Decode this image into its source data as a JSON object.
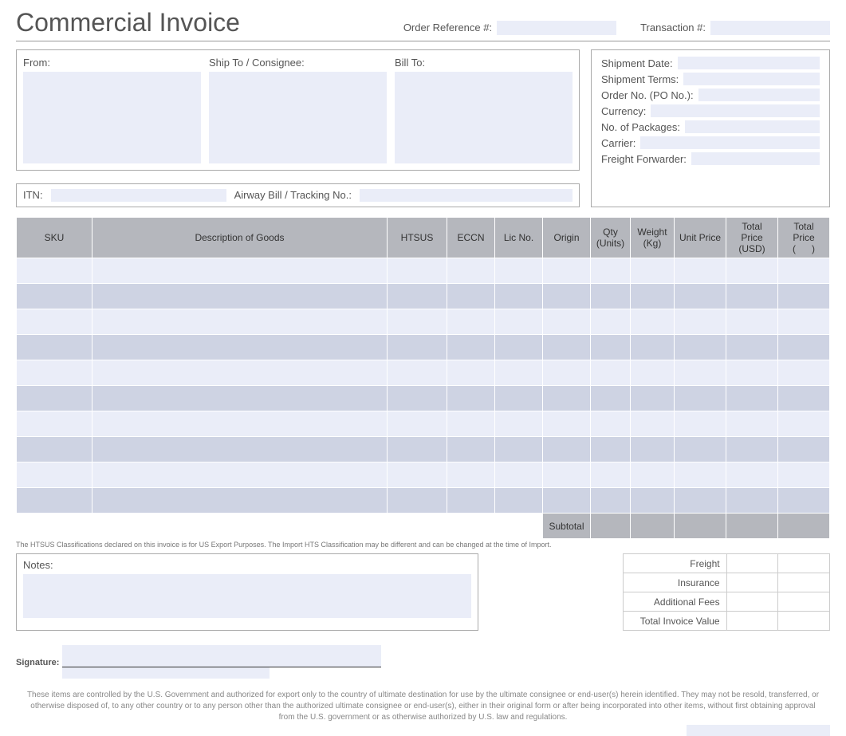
{
  "title": "Commercial Invoice",
  "header_refs": {
    "order_ref_label": "Order Reference #:",
    "order_ref_value": "",
    "transaction_label": "Transaction #:",
    "transaction_value": ""
  },
  "addresses": {
    "from_label": "From:",
    "from_value": "",
    "shipto_label": "Ship To / Consignee:",
    "shipto_value": "",
    "billto_label": "Bill To:",
    "billto_value": ""
  },
  "shipment": {
    "date_label": "Shipment Date:",
    "date_value": "",
    "terms_label": "Shipment Terms:",
    "terms_value": "",
    "orderno_label": "Order No. (PO No.):",
    "orderno_value": "",
    "currency_label": "Currency:",
    "currency_value": "",
    "packages_label": "No. of Packages:",
    "packages_value": "",
    "carrier_label": "Carrier:",
    "carrier_value": "",
    "forwarder_label": "Freight Forwarder:",
    "forwarder_value": ""
  },
  "itn": {
    "itn_label": "ITN:",
    "itn_value": "",
    "awb_label": "Airway Bill / Tracking No.:",
    "awb_value": ""
  },
  "columns": {
    "sku": "SKU",
    "desc": "Description of Goods",
    "htsus": "HTSUS",
    "eccn": "ECCN",
    "lic": "Lic No.",
    "origin": "Origin",
    "qty": "Qty (Units)",
    "weight": "Weight (Kg)",
    "unit": "Unit Price",
    "total1": "Total Price (USD)",
    "total2": "Total Price (      )"
  },
  "rows": [
    {
      "sku": "",
      "desc": "",
      "htsus": "",
      "eccn": "",
      "lic": "",
      "origin": "",
      "qty": "",
      "weight": "",
      "unit": "",
      "total1": "",
      "total2": ""
    },
    {
      "sku": "",
      "desc": "",
      "htsus": "",
      "eccn": "",
      "lic": "",
      "origin": "",
      "qty": "",
      "weight": "",
      "unit": "",
      "total1": "",
      "total2": ""
    },
    {
      "sku": "",
      "desc": "",
      "htsus": "",
      "eccn": "",
      "lic": "",
      "origin": "",
      "qty": "",
      "weight": "",
      "unit": "",
      "total1": "",
      "total2": ""
    },
    {
      "sku": "",
      "desc": "",
      "htsus": "",
      "eccn": "",
      "lic": "",
      "origin": "",
      "qty": "",
      "weight": "",
      "unit": "",
      "total1": "",
      "total2": ""
    },
    {
      "sku": "",
      "desc": "",
      "htsus": "",
      "eccn": "",
      "lic": "",
      "origin": "",
      "qty": "",
      "weight": "",
      "unit": "",
      "total1": "",
      "total2": ""
    },
    {
      "sku": "",
      "desc": "",
      "htsus": "",
      "eccn": "",
      "lic": "",
      "origin": "",
      "qty": "",
      "weight": "",
      "unit": "",
      "total1": "",
      "total2": ""
    },
    {
      "sku": "",
      "desc": "",
      "htsus": "",
      "eccn": "",
      "lic": "",
      "origin": "",
      "qty": "",
      "weight": "",
      "unit": "",
      "total1": "",
      "total2": ""
    },
    {
      "sku": "",
      "desc": "",
      "htsus": "",
      "eccn": "",
      "lic": "",
      "origin": "",
      "qty": "",
      "weight": "",
      "unit": "",
      "total1": "",
      "total2": ""
    },
    {
      "sku": "",
      "desc": "",
      "htsus": "",
      "eccn": "",
      "lic": "",
      "origin": "",
      "qty": "",
      "weight": "",
      "unit": "",
      "total1": "",
      "total2": ""
    },
    {
      "sku": "",
      "desc": "",
      "htsus": "",
      "eccn": "",
      "lic": "",
      "origin": "",
      "qty": "",
      "weight": "",
      "unit": "",
      "total1": "",
      "total2": ""
    }
  ],
  "subtotal_label": "Subtotal",
  "subtotal_values": {
    "qty": "",
    "weight": "",
    "unit": "",
    "total1": "",
    "total2": ""
  },
  "hts_note": "The HTSUS Classifications declared on this invoice is for US Export Purposes. The Import HTS Classification may be different and can be changed at the time of Import.",
  "notes": {
    "label": "Notes:",
    "value": ""
  },
  "totals": {
    "freight_label": "Freight",
    "freight_v1": "",
    "freight_v2": "",
    "insurance_label": "Insurance",
    "insurance_v1": "",
    "insurance_v2": "",
    "fees_label": "Additional Fees",
    "fees_v1": "",
    "fees_v2": "",
    "total_label": "Total Invoice Value",
    "total_v1": "",
    "total_v2": ""
  },
  "signature": {
    "label": "Signature:",
    "value": ""
  },
  "disclaimer": "These items are controlled by the U.S. Government and authorized for export only to the country of ultimate destination for use by the ultimate consignee or end-user(s) herein identified. They may not be resold, transferred, or otherwise disposed of, to any other country or to any person other than the authorized ultimate consignee or end-user(s), either in their original form or after being incorporated into other items, without first obtaining approval from the U.S. government or as otherwise authorized by U.S. law and regulations.",
  "styling": {
    "header_bg": "#b5b7bd",
    "row_odd_bg": "#eaedf8",
    "row_even_bg": "#ced3e3",
    "field_bg": "#eaedf8",
    "border_color": "#aaa",
    "text_color": "#555",
    "title_fontsize": 32,
    "body_fontsize": 13,
    "table_fontsize": 12,
    "note_fontsize": 9,
    "disclaimer_fontsize": 10
  }
}
